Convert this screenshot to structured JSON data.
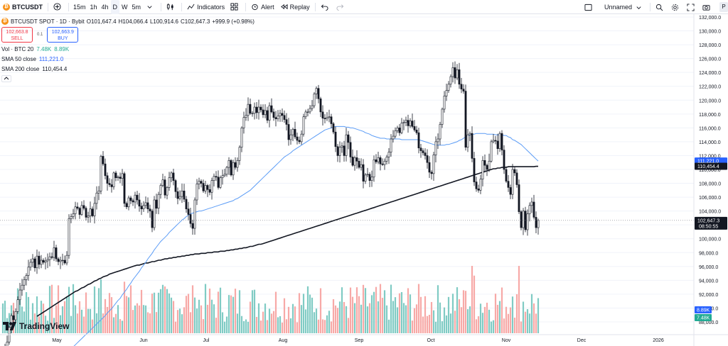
{
  "toolbar": {
    "symbol": "BTCUSDT",
    "intervals": [
      "15m",
      "1h",
      "4h",
      "D",
      "W",
      "5m"
    ],
    "active_interval": "D",
    "indicators_label": "Indicators",
    "alert_label": "Alert",
    "replay_label": "Replay",
    "layout_name": "Unnamed",
    "publish_label": "P"
  },
  "legend": {
    "title": "BTCUSDT SPOT · 1D · Bybit",
    "o_key": "O",
    "o": "101,647.4",
    "h_key": "H",
    "h": "104,066.4",
    "l_key": "L",
    "l": "100,914.6",
    "c_key": "C",
    "c": "102,647.3",
    "change": "+999.9 (+0.98%)",
    "sell_price": "102,663.8",
    "sell_label": "SELL",
    "spread": "0.1",
    "buy_price": "102,663.9",
    "buy_label": "BUY",
    "vol_label": "Vol · BTC 20",
    "vol_v1": "7.48K",
    "vol_v2": "8.89K",
    "sma50_label": "SMA 50 close",
    "sma50_value": "111,221.0",
    "sma200_label": "SMA 200 close",
    "sma200_value": "110,454.4",
    "collapse_icon": "chevron-up-icon"
  },
  "branding": {
    "name": "TradingView"
  },
  "colors": {
    "up": "#131722",
    "down": "#131722",
    "vol_up": "#80cbc4",
    "vol_down": "#f7a9a7",
    "sma50": "#5b9cf6",
    "sma200": "#131722",
    "sell": "#f23645",
    "buy": "#2962ff"
  },
  "chart_data": {
    "type": "candlestick",
    "price_axis": {
      "ticks": [
        "132,000.0",
        "130,000.0",
        "128,000.0",
        "126,000.0",
        "124,000.0",
        "122,000.0",
        "120,000.0",
        "118,000.0",
        "116,000.0",
        "114,000.0",
        "112,000.0",
        "110,000.0",
        "108,000.0",
        "106,000.0",
        "104,000.0",
        "102,000.0",
        "100,000.0",
        "98,000.0",
        "96,000.0",
        "94,000.0",
        "92,000.0",
        "90,000.0",
        "88,000.0"
      ],
      "range": [
        88000,
        132000
      ],
      "current_price": "102,647.3",
      "countdown": "08:50:55",
      "sma50_tag": "111,221.0",
      "sma200_tag": "110,454.4",
      "vol_tag1": "8.89K",
      "vol_tag2": "7.48K"
    },
    "time_axis": [
      "May",
      "Jun",
      "Jul",
      "Aug",
      "Sep",
      "Oct",
      "Nov",
      "Dec",
      "2026"
    ],
    "closes": [
      83500,
      84300,
      85100,
      87200,
      88900,
      88300,
      89500,
      91200,
      92600,
      93300,
      94100,
      94700,
      95900,
      96600,
      97100,
      95800,
      97500,
      96300,
      96900,
      96600,
      96800,
      97000,
      97400,
      97300,
      98700,
      97100,
      96700,
      96900,
      96900,
      96500,
      97600,
      102900,
      103200,
      103600,
      104600,
      104400,
      103500,
      104800,
      104400,
      103100,
      103300,
      104300,
      103300,
      105100,
      106600,
      106900,
      111900,
      110800,
      109100,
      108000,
      107800,
      107500,
      109500,
      108800,
      108900,
      108700,
      109400,
      105100,
      104600,
      105900,
      105500,
      105300,
      106300,
      105600,
      104700,
      104300,
      104800,
      105200,
      104300,
      104000,
      101600,
      105600,
      104400,
      106400,
      107700,
      108500,
      106300,
      107400,
      108800,
      109500,
      108400,
      106800,
      105800,
      106100,
      106900,
      105700,
      104300,
      103500,
      102200,
      101500,
      105600,
      107900,
      108300,
      108000,
      106900,
      107700,
      107100,
      106700,
      108400,
      109000,
      108900,
      107400,
      108800,
      109100,
      109300,
      110300,
      111300,
      109200,
      111000,
      110300,
      111300,
      113200,
      116000,
      117500,
      117800,
      119400,
      118100,
      118100,
      119000,
      118200,
      119000,
      118600,
      117900,
      118500,
      117100,
      119200,
      118300,
      117500,
      117300,
      117700,
      118100,
      117800,
      117200,
      116500,
      114300,
      115000,
      115800,
      114700,
      114200,
      114000,
      115100,
      117600,
      118300,
      118300,
      118800,
      119200,
      120900,
      121700,
      120200,
      118300,
      117400,
      117300,
      117500,
      117600,
      116600,
      115400,
      113300,
      112000,
      113200,
      113400,
      112000,
      115000,
      113900,
      111800,
      110600,
      111700,
      111200,
      110300,
      110700,
      108300,
      109200,
      109300,
      108400,
      108900,
      111400,
      111100,
      111700,
      110800,
      110700,
      111200,
      111800,
      112500,
      114400,
      114800,
      115600,
      116000,
      115300,
      116700,
      116800,
      117100,
      116300,
      117000,
      116200,
      115700,
      115300,
      113100,
      112700,
      112400,
      112000,
      111000,
      109600,
      109400,
      112100,
      114000,
      114400,
      116500,
      118700,
      120600,
      121400,
      122300,
      123400,
      124700,
      123200,
      124400,
      122300,
      121600,
      121300,
      113200,
      115000,
      115200,
      111600,
      108200,
      107200,
      107000,
      108600,
      111300,
      110600,
      110000,
      111200,
      114000,
      114200,
      114100,
      113000,
      115200,
      112800,
      110000,
      108300,
      107400,
      106400,
      110000,
      109500,
      107800,
      103900,
      101600,
      104000,
      101300,
      103600,
      104800,
      105300,
      103100,
      101600,
      102647
    ],
    "sma50": [
      82800,
      82700,
      82700,
      82700,
      82700,
      82700,
      82800,
      82800,
      82800,
      82800,
      82800,
      82800,
      82800,
      82800,
      82900,
      82900,
      83000,
      83000,
      83000,
      83100,
      83100,
      83200,
      83300,
      83400,
      83500,
      83600,
      83800,
      84000,
      84200,
      84400,
      84700,
      85000,
      85300,
      85600,
      85900,
      86200,
      86500,
      86800,
      87100,
      87400,
      87700,
      88000,
      88300,
      88600,
      88900,
      89300,
      89600,
      89900,
      90300,
      90700,
      91100,
      91400,
      91900,
      92300,
      92700,
      93200,
      93600,
      94100,
      94500,
      94900,
      95300,
      95800,
      96200,
      96600,
      97100,
      97500,
      97900,
      98400,
      98800,
      99200,
      99600,
      99900,
      100200,
      100500,
      100900,
      101200,
      101500,
      101800,
      102100,
      102400,
      102700,
      102900,
      103200,
      103400,
      103600,
      103700,
      103800,
      103900,
      104000,
      104000,
      104100,
      104200,
      104300,
      104400,
      104500,
      104600,
      104700,
      104800,
      104900,
      105000,
      105100,
      105200,
      105300,
      105400,
      105500,
      105700,
      105800,
      106000,
      106200,
      106400,
      106600,
      106800,
      107000,
      107300,
      107600,
      107900,
      108200,
      108500,
      108800,
      109100,
      109400,
      109700,
      110000,
      110300,
      110600,
      110900,
      111200,
      111500,
      111800,
      112000,
      112200,
      112400,
      112700,
      112900,
      113100,
      113300,
      113500,
      113700,
      113900,
      114100,
      114300,
      114500,
      114700,
      114900,
      115100,
      115300,
      115500,
      115700,
      115800,
      115900,
      116000,
      116100,
      116200,
      116200,
      116200,
      116200,
      116200,
      116100,
      116100,
      116000,
      116000,
      115900,
      115800,
      115700,
      115600,
      115500,
      115300,
      115200,
      115100,
      114900,
      114800,
      114700,
      114600,
      114500,
      114500,
      114500,
      114400,
      114400,
      114400,
      114400,
      114400,
      114400,
      114400,
      114300,
      114300,
      114300,
      114300,
      114300,
      114300,
      114300,
      114300,
      114300,
      114200,
      114100,
      114000,
      113900,
      113800,
      113700,
      113600,
      113500,
      113500,
      113500,
      113500,
      113500,
      113600,
      113600,
      113700,
      113800,
      113900,
      114000,
      114200,
      114300,
      114500,
      114700,
      114800,
      115000,
      115100,
      115100,
      115200,
      115200,
      115200,
      115200,
      115200,
      115100,
      115100,
      115100,
      115100,
      115000,
      115000,
      115000,
      115000,
      114900,
      114900,
      114700,
      114600,
      114300,
      114200,
      114000,
      113800,
      113600,
      113300,
      113000,
      112700,
      112400,
      112100,
      111800,
      111500,
      111221
    ],
    "sma200": [
      88800,
      89000,
      89200,
      89400,
      89600,
      89800,
      90000,
      90200,
      90400,
      90600,
      90800,
      91000,
      91200,
      91400,
      91600,
      91800,
      92000,
      92200,
      92400,
      92500,
      92700,
      92900,
      93000,
      93200,
      93400,
      93500,
      93700,
      93900,
      94000,
      94200,
      94300,
      94500,
      94600,
      94700,
      94900,
      95000,
      95100,
      95200,
      95300,
      95400,
      95500,
      95600,
      95700,
      95800,
      95900,
      96000,
      96100,
      96200,
      96200,
      96300,
      96400,
      96500,
      96500,
      96600,
      96700,
      96700,
      96800,
      96900,
      96900,
      97000,
      97100,
      97100,
      97200,
      97200,
      97300,
      97300,
      97400,
      97400,
      97500,
      97500,
      97600,
      97600,
      97700,
      97700,
      97800,
      97800,
      97800,
      97900,
      97900,
      97900,
      98000,
      98000,
      98000,
      98100,
      98100,
      98100,
      98200,
      98200,
      98200,
      98300,
      98300,
      98400,
      98400,
      98500,
      98500,
      98600,
      98600,
      98700,
      98700,
      98800,
      98900,
      98900,
      99000,
      99100,
      99200,
      99200,
      99300,
      99400,
      99500,
      99600,
      99700,
      99800,
      99900,
      100000,
      100100,
      100200,
      100300,
      100400,
      100500,
      100600,
      100700,
      100800,
      100900,
      101000,
      101100,
      101200,
      101300,
      101400,
      101500,
      101600,
      101700,
      101800,
      101900,
      102000,
      102100,
      102200,
      102300,
      102400,
      102500,
      102600,
      102700,
      102800,
      102900,
      103000,
      103100,
      103200,
      103300,
      103400,
      103500,
      103600,
      103700,
      103800,
      103900,
      104000,
      104100,
      104200,
      104300,
      104400,
      104500,
      104600,
      104700,
      104800,
      104900,
      105000,
      105100,
      105200,
      105300,
      105400,
      105500,
      105600,
      105700,
      105800,
      105900,
      106000,
      106100,
      106200,
      106300,
      106400,
      106500,
      106600,
      106700,
      106800,
      106900,
      107000,
      107100,
      107200,
      107300,
      107400,
      107500,
      107600,
      107700,
      107800,
      107900,
      108000,
      108100,
      108200,
      108300,
      108400,
      108500,
      108600,
      108700,
      108800,
      108900,
      109000,
      109100,
      109200,
      109300,
      109400,
      109500,
      109600,
      109700,
      109800,
      109900,
      110000,
      110100,
      110100,
      110200,
      110200,
      110300,
      110300,
      110300,
      110400,
      110400,
      110400,
      110400,
      110400,
      110400,
      110400,
      110400,
      110400,
      110400,
      110400,
      110400,
      110400,
      110454,
      110454
    ]
  }
}
